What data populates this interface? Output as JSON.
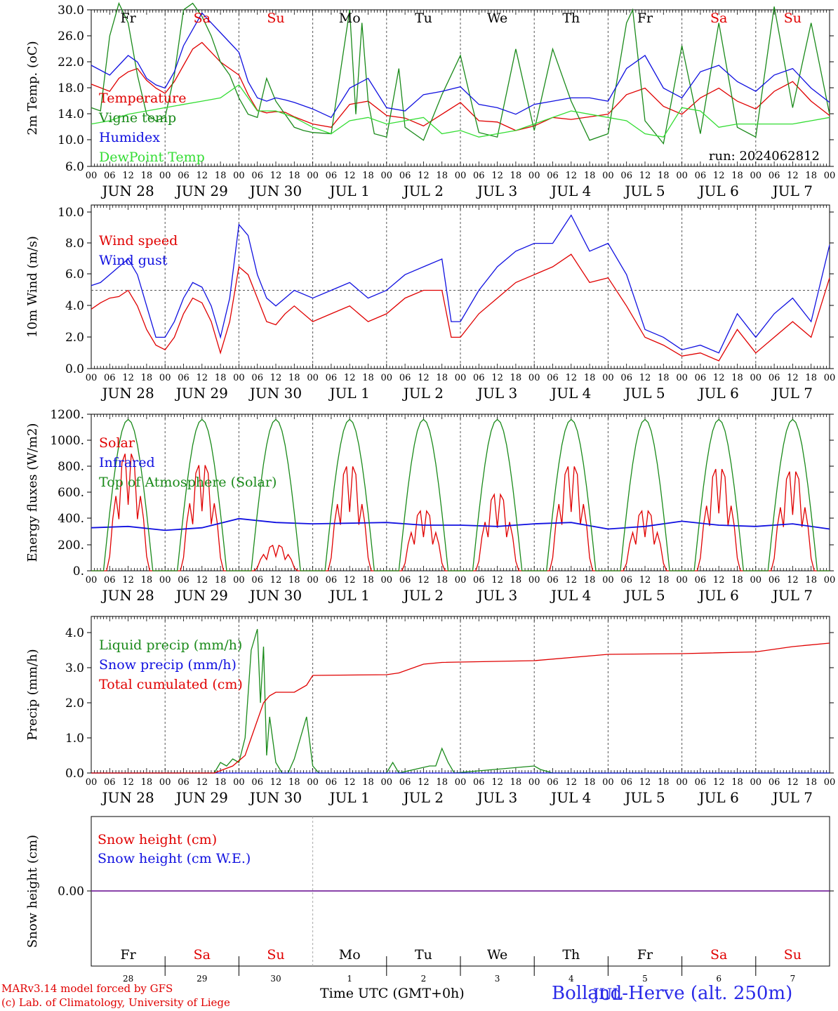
{
  "footer": {
    "credit_line1": "MARv3.14 model forced by GFS",
    "credit_line2": "(c) Lab. of Climatology, University of Liege",
    "time_axis_label": "Time UTC (GMT+0h)",
    "station": "Bolland-Herve (alt. 250m)",
    "month_overlay": "JUL"
  },
  "days": {
    "weekday_labels": [
      "Fr",
      "Sa",
      "Su",
      "Mo",
      "Tu",
      "We",
      "Th",
      "Fr",
      "Sa",
      "Su"
    ],
    "weekend_flags": [
      false,
      true,
      true,
      false,
      false,
      false,
      false,
      false,
      true,
      true
    ],
    "date_labels": [
      "JUN 28",
      "JUN 29",
      "JUN 30",
      "JUL  1",
      "JUL  2",
      "JUL  3",
      "JUL  4",
      "JUL  5",
      "JUL  6",
      "JUL  7"
    ],
    "day_numbers": [
      "28",
      "29",
      "30",
      "1",
      "2",
      "3",
      "4",
      "5",
      "6",
      "7"
    ],
    "hour_ticks": [
      "00",
      "06",
      "12",
      "18"
    ],
    "final_tick": "00"
  },
  "colors": {
    "red": "#e00000",
    "green": "#1a8a1a",
    "blue": "#1010e0",
    "lightgreen": "#33dd33",
    "purple": "#7a2aa0",
    "weekend": "#e00000",
    "weekday": "#000000"
  },
  "chart_data": [
    {
      "type": "line",
      "id": "temp",
      "ylabel": "2m Temp. (oC)",
      "ylim": [
        6,
        30
      ],
      "yticks": [
        "30.0",
        "26.0",
        "22.0",
        "18.0",
        "14.0",
        "10.0",
        "6.0"
      ],
      "run_label": "run: 2024062812",
      "x_unit": "hours since 2024-06-28 00 UTC",
      "series": [
        {
          "name": "Temperature",
          "color": "red",
          "x": [
            0,
            6,
            9,
            12,
            15,
            18,
            21,
            24,
            27,
            30,
            33,
            36,
            39,
            42,
            45,
            48,
            51,
            54,
            57,
            60,
            63,
            66,
            72,
            78,
            84,
            90,
            96,
            102,
            108,
            114,
            120,
            126,
            132,
            138,
            144,
            150,
            156,
            162,
            168,
            174,
            180,
            186,
            192,
            198,
            204,
            210,
            216,
            222,
            228,
            234,
            240
          ],
          "values": [
            18.6,
            17.5,
            19.5,
            20.5,
            21.0,
            19.2,
            18.0,
            17.2,
            19.0,
            21.5,
            24.0,
            25.0,
            23.5,
            22.0,
            21.0,
            20.0,
            17.0,
            14.6,
            14.2,
            14.4,
            14.3,
            13.6,
            12.5,
            12.0,
            15.5,
            16.0,
            13.8,
            13.4,
            12.2,
            14.0,
            15.8,
            13.0,
            12.8,
            11.5,
            12.2,
            13.5,
            13.2,
            13.6,
            14.0,
            17.0,
            18.0,
            15.2,
            14.0,
            16.5,
            18.0,
            16.0,
            14.8,
            17.5,
            19.0,
            16.0,
            13.8
          ]
        },
        {
          "name": "Vigne temp",
          "color": "green",
          "x": [
            0,
            3,
            6,
            9,
            12,
            15,
            18,
            21,
            24,
            27,
            30,
            33,
            36,
            39,
            42,
            45,
            48,
            51,
            54,
            57,
            60,
            63,
            66,
            69,
            72,
            78,
            84,
            86,
            88,
            90,
            92,
            96,
            100,
            102,
            108,
            114,
            120,
            124,
            126,
            132,
            138,
            144,
            150,
            156,
            162,
            168,
            174,
            176,
            180,
            186,
            192,
            198,
            204,
            210,
            216,
            222,
            228,
            234,
            240
          ],
          "values": [
            15.0,
            14.5,
            26.0,
            31.0,
            28.0,
            20.0,
            14.0,
            13.0,
            13.5,
            20.0,
            30.0,
            31.0,
            29.0,
            26.0,
            22.0,
            20.0,
            16.5,
            14.0,
            13.5,
            19.5,
            16.0,
            14.0,
            12.0,
            11.5,
            11.2,
            11.0,
            30.0,
            14.0,
            28.0,
            16.0,
            11.0,
            10.5,
            21.0,
            12.0,
            10.0,
            17.0,
            23.0,
            15.0,
            11.2,
            10.5,
            24.0,
            11.5,
            24.0,
            16.0,
            10.0,
            11.0,
            28.0,
            30.0,
            13.0,
            9.5,
            24.5,
            11.0,
            28.0,
            12.0,
            10.5,
            30.5,
            15.0,
            28.0,
            14.0
          ]
        },
        {
          "name": "Humidex",
          "color": "blue",
          "x": [
            0,
            6,
            9,
            12,
            15,
            18,
            21,
            24,
            27,
            30,
            33,
            36,
            39,
            42,
            45,
            48,
            51,
            54,
            57,
            60,
            63,
            66,
            72,
            78,
            84,
            90,
            96,
            102,
            108,
            114,
            120,
            126,
            132,
            138,
            144,
            150,
            156,
            162,
            168,
            174,
            180,
            186,
            192,
            198,
            204,
            210,
            216,
            222,
            228,
            234,
            240
          ],
          "values": [
            21.5,
            20.0,
            21.5,
            23.0,
            22.0,
            19.5,
            18.5,
            18.0,
            20.5,
            24.5,
            27.0,
            29.5,
            28.0,
            26.5,
            25.0,
            23.5,
            19.0,
            16.5,
            16.0,
            16.5,
            16.2,
            15.8,
            14.8,
            13.5,
            18.0,
            19.5,
            15.0,
            14.5,
            17.0,
            17.5,
            18.2,
            15.5,
            15.0,
            14.0,
            15.5,
            16.0,
            16.5,
            16.5,
            16.0,
            21.0,
            23.0,
            18.0,
            16.5,
            20.5,
            21.5,
            19.0,
            17.5,
            20.0,
            21.0,
            18.0,
            15.8
          ]
        },
        {
          "name": "DewPoint Temp",
          "color": "lightgreen",
          "x": [
            0,
            6,
            12,
            18,
            24,
            30,
            36,
            42,
            48,
            51,
            54,
            60,
            66,
            72,
            78,
            84,
            90,
            96,
            102,
            108,
            114,
            120,
            126,
            132,
            138,
            144,
            150,
            156,
            162,
            168,
            174,
            180,
            186,
            192,
            198,
            204,
            210,
            216,
            222,
            228,
            234,
            240
          ],
          "values": [
            12.5,
            13.0,
            14.0,
            14.5,
            15.0,
            15.5,
            16.0,
            16.5,
            18.5,
            16.5,
            14.5,
            14.5,
            13.5,
            12.0,
            11.0,
            13.0,
            13.5,
            12.5,
            13.0,
            13.5,
            11.0,
            11.5,
            10.5,
            11.0,
            11.5,
            12.5,
            13.5,
            14.5,
            14.0,
            13.5,
            13.0,
            11.0,
            10.5,
            15.0,
            14.5,
            12.0,
            12.5,
            12.5,
            12.5,
            12.5,
            13.0,
            13.5
          ]
        }
      ]
    },
    {
      "type": "line",
      "id": "wind",
      "ylabel": "10m Wind (m/s)",
      "ylim": [
        0,
        10
      ],
      "yticks": [
        "10.0",
        "8.0",
        "6.0",
        "4.0",
        "2.0",
        "0.0"
      ],
      "reference_line": 5,
      "x_unit": "hours since 2024-06-28 00 UTC",
      "series": [
        {
          "name": "Wind speed",
          "color": "red",
          "x": [
            0,
            3,
            6,
            9,
            12,
            15,
            18,
            21,
            24,
            27,
            30,
            33,
            36,
            39,
            42,
            45,
            48,
            51,
            54,
            57,
            60,
            63,
            66,
            72,
            78,
            84,
            90,
            96,
            102,
            108,
            114,
            117,
            120,
            126,
            132,
            138,
            144,
            150,
            156,
            162,
            168,
            174,
            180,
            186,
            192,
            198,
            204,
            210,
            216,
            222,
            228,
            234,
            240
          ],
          "values": [
            3.8,
            4.2,
            4.5,
            4.6,
            5.0,
            4.0,
            2.5,
            1.5,
            1.2,
            2.0,
            3.5,
            4.5,
            4.2,
            3.0,
            1.0,
            3.0,
            6.5,
            6.0,
            4.5,
            3.0,
            2.8,
            3.5,
            4.0,
            3.0,
            3.5,
            4.0,
            3.0,
            3.5,
            4.5,
            5.0,
            5.0,
            2.0,
            2.0,
            3.5,
            4.5,
            5.5,
            6.0,
            6.5,
            7.3,
            5.5,
            5.8,
            4.0,
            2.0,
            1.5,
            0.8,
            1.0,
            0.5,
            2.5,
            1.0,
            2.0,
            3.0,
            2.0,
            5.8
          ]
        },
        {
          "name": "Wind gust",
          "color": "blue",
          "x": [
            0,
            3,
            6,
            9,
            12,
            15,
            18,
            21,
            24,
            27,
            30,
            33,
            36,
            39,
            42,
            45,
            48,
            51,
            54,
            57,
            60,
            63,
            66,
            72,
            78,
            84,
            90,
            96,
            102,
            108,
            114,
            117,
            120,
            126,
            132,
            138,
            144,
            150,
            156,
            162,
            168,
            174,
            180,
            186,
            192,
            198,
            204,
            210,
            216,
            222,
            228,
            234,
            240
          ],
          "values": [
            5.3,
            5.5,
            6.0,
            6.5,
            7.0,
            6.0,
            4.0,
            2.0,
            2.0,
            3.0,
            4.5,
            5.5,
            5.2,
            4.0,
            2.0,
            4.5,
            9.2,
            8.5,
            6.0,
            4.5,
            4.0,
            4.5,
            5.0,
            4.5,
            5.0,
            5.5,
            4.5,
            5.0,
            6.0,
            6.5,
            7.0,
            3.0,
            3.0,
            5.0,
            6.5,
            7.5,
            8.0,
            8.0,
            9.8,
            7.5,
            8.0,
            6.0,
            2.5,
            2.0,
            1.2,
            1.5,
            1.0,
            3.5,
            2.0,
            3.5,
            4.5,
            3.0,
            7.9
          ]
        }
      ]
    },
    {
      "type": "line",
      "id": "flux",
      "ylabel": "Energy fluxes (W/m2)",
      "ylim": [
        0,
        1200
      ],
      "yticks": [
        "1200.",
        "1000.",
        "800.",
        "600.",
        "400.",
        "200.",
        "0."
      ],
      "x_unit": "hours since 2024-06-28 00 UTC",
      "series": [
        {
          "name": "Solar",
          "color": "red",
          "peaks": [
            920,
            830,
            200,
            820,
            470,
            600,
            820,
            470,
            800,
            780
          ]
        },
        {
          "name": "Infrared",
          "color": "blue",
          "x": [
            0,
            12,
            24,
            36,
            48,
            60,
            72,
            84,
            96,
            108,
            120,
            132,
            144,
            156,
            168,
            180,
            192,
            204,
            216,
            228,
            240
          ],
          "values": [
            330,
            340,
            310,
            330,
            400,
            370,
            360,
            365,
            370,
            350,
            350,
            340,
            360,
            370,
            320,
            340,
            380,
            350,
            340,
            360,
            320
          ]
        },
        {
          "name": "Top of Atmosphere (Solar)",
          "color": "green",
          "peak": 1160,
          "sunrise_hour": 4,
          "sunset_hour": 20
        }
      ]
    },
    {
      "type": "line",
      "id": "precip",
      "ylabel": "Precip (mm/h)",
      "ylim": [
        0,
        4.5
      ],
      "yticks": [
        "4.0",
        "3.0",
        "2.0",
        "1.0",
        "0.0"
      ],
      "x_unit": "hours since 2024-06-28 00 UTC",
      "series": [
        {
          "name": "Liquid precip (mm/h)",
          "color": "green",
          "x": [
            0,
            40,
            42,
            44,
            46,
            48,
            50,
            52,
            54,
            55,
            56,
            57,
            58,
            60,
            62,
            64,
            66,
            70,
            72,
            74,
            96,
            98,
            100,
            110,
            112,
            114,
            116,
            118,
            144,
            146,
            150,
            240
          ],
          "values": [
            0,
            0,
            0.3,
            0.2,
            0.4,
            0.3,
            1.0,
            3.5,
            4.1,
            2.0,
            3.6,
            0.5,
            1.6,
            0.3,
            0,
            0,
            0.4,
            1.6,
            0.2,
            0,
            0,
            0.3,
            0,
            0.2,
            0.2,
            0.7,
            0.3,
            0,
            0.2,
            0.1,
            0,
            0
          ]
        },
        {
          "name": "Snow precip (mm/h)",
          "color": "blue",
          "x": [
            0,
            240
          ],
          "values": [
            0,
            0
          ]
        },
        {
          "name": "Total cumulated (cm)",
          "color": "red",
          "x": [
            0,
            40,
            46,
            50,
            54,
            56,
            58,
            60,
            66,
            70,
            72,
            96,
            100,
            108,
            114,
            144,
            168,
            192,
            216,
            228,
            240
          ],
          "values": [
            0,
            0,
            0.2,
            0.5,
            1.5,
            2.0,
            2.2,
            2.3,
            2.3,
            2.5,
            2.78,
            2.8,
            2.85,
            3.1,
            3.15,
            3.2,
            3.38,
            3.4,
            3.45,
            3.6,
            3.7
          ]
        }
      ]
    },
    {
      "type": "line",
      "id": "snow",
      "ylabel": "Snow height (cm)",
      "yticks": [
        "0.00"
      ],
      "x_unit": "hours since 2024-06-28 00 UTC",
      "series": [
        {
          "name": "Snow height (cm)",
          "color": "red",
          "x": [
            0,
            240
          ],
          "values": [
            0,
            0
          ]
        },
        {
          "name": "Snow height (cm W.E.)",
          "color": "blue",
          "x": [
            0,
            240
          ],
          "values": [
            0,
            0
          ]
        }
      ]
    }
  ]
}
